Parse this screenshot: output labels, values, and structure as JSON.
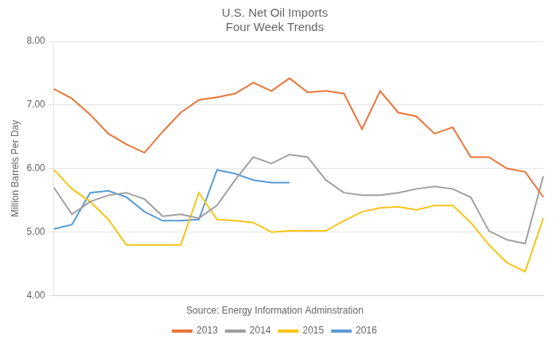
{
  "chart_data": {
    "type": "line",
    "title": "U.S. Net Oil Imports\nFour Week Trends",
    "ylabel": "Million Barrels Per Day",
    "annotations": [
      "Source: Energy Information Adminstration"
    ],
    "categories": [
      null,
      null,
      null,
      null,
      null,
      null,
      null,
      null,
      null,
      null,
      null,
      null,
      null,
      null,
      null,
      null,
      null,
      null,
      null,
      null,
      null,
      null,
      null,
      null,
      null,
      null,
      null,
      null
    ],
    "series": [
      {
        "name": "2013",
        "color": "#e8763a",
        "values": [
          7.25,
          7.1,
          6.85,
          6.55,
          6.38,
          6.25,
          6.58,
          6.88,
          7.08,
          7.12,
          7.18,
          7.35,
          7.22,
          7.42,
          7.2,
          7.22,
          7.18,
          6.62,
          7.22,
          6.88,
          6.82,
          6.55,
          6.65,
          6.18,
          6.18,
          6.0,
          5.95,
          5.55
        ]
      },
      {
        "name": "2014",
        "color": "#a0a0a0",
        "values": [
          5.7,
          5.28,
          5.48,
          5.58,
          5.62,
          5.52,
          5.25,
          5.28,
          5.22,
          5.42,
          5.82,
          6.18,
          6.08,
          6.22,
          6.18,
          5.82,
          5.62,
          5.58,
          5.58,
          5.62,
          5.68,
          5.72,
          5.68,
          5.55,
          5.02,
          4.88,
          4.82,
          5.88
        ]
      },
      {
        "name": "2015",
        "color": "#f5c518",
        "values": [
          5.98,
          5.68,
          5.48,
          5.2,
          4.8,
          4.8,
          4.8,
          4.8,
          5.62,
          5.2,
          5.18,
          5.15,
          5.0,
          5.02,
          5.02,
          5.02,
          5.18,
          5.32,
          5.38,
          5.4,
          5.35,
          5.42,
          5.42,
          5.15,
          4.8,
          4.52,
          4.38,
          5.22
        ]
      },
      {
        "name": "2016",
        "color": "#5b9bd5",
        "values": [
          5.05,
          5.12,
          5.62,
          5.65,
          5.55,
          5.32,
          5.18,
          5.18,
          5.2,
          5.98,
          5.92,
          5.82,
          5.78,
          5.78,
          null,
          null,
          null,
          null,
          null,
          null,
          null,
          null,
          null,
          null,
          null,
          null,
          null,
          null
        ]
      }
    ],
    "ylim": [
      4.0,
      8.0
    ],
    "yticks": [
      {
        "value": 4.0,
        "label": "4.00"
      },
      {
        "value": 5.0,
        "label": "5.00"
      },
      {
        "value": 6.0,
        "label": "6.00"
      },
      {
        "value": 7.0,
        "label": "7.00"
      },
      {
        "value": 8.0,
        "label": "8.00"
      }
    ],
    "grid": true,
    "legend": "bottom",
    "tick_labels": "y"
  }
}
